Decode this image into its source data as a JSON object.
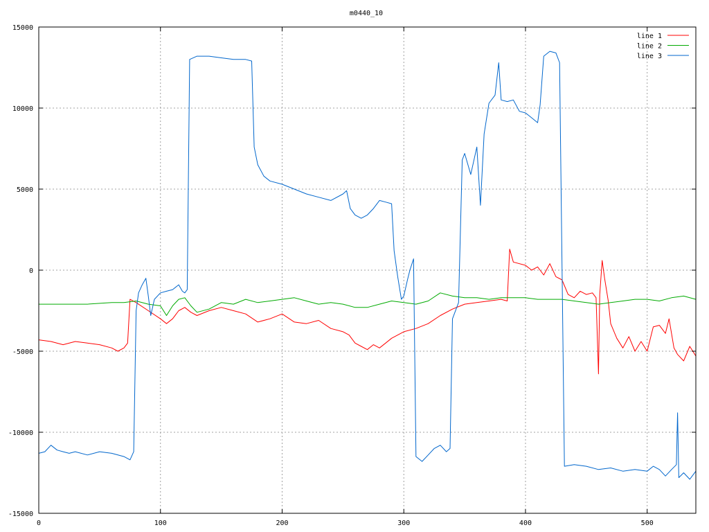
{
  "chart_data": {
    "type": "line",
    "title": "m0440_10",
    "xlabel": "",
    "ylabel": "",
    "xlim": [
      0,
      540
    ],
    "ylim": [
      -15000,
      15000
    ],
    "grid": true,
    "legend_position": "top-right",
    "x_ticks": [
      "0",
      "100",
      "200",
      "300",
      "400",
      "500"
    ],
    "y_ticks": [
      "15000",
      "10000",
      "5000",
      "0",
      "-5000",
      "-10000",
      "-15000"
    ],
    "series": [
      {
        "name": "line 1",
        "color": "#ff0000",
        "points": [
          [
            0,
            -4300
          ],
          [
            10,
            -4400
          ],
          [
            20,
            -4600
          ],
          [
            30,
            -4400
          ],
          [
            40,
            -4500
          ],
          [
            50,
            -4600
          ],
          [
            60,
            -4800
          ],
          [
            65,
            -5000
          ],
          [
            70,
            -4800
          ],
          [
            73,
            -4500
          ],
          [
            75,
            -1800
          ],
          [
            80,
            -2000
          ],
          [
            90,
            -2500
          ],
          [
            100,
            -3000
          ],
          [
            105,
            -3300
          ],
          [
            110,
            -3000
          ],
          [
            115,
            -2500
          ],
          [
            120,
            -2300
          ],
          [
            125,
            -2600
          ],
          [
            130,
            -2800
          ],
          [
            140,
            -2500
          ],
          [
            150,
            -2300
          ],
          [
            160,
            -2500
          ],
          [
            170,
            -2700
          ],
          [
            180,
            -3200
          ],
          [
            190,
            -3000
          ],
          [
            200,
            -2700
          ],
          [
            210,
            -3200
          ],
          [
            220,
            -3300
          ],
          [
            230,
            -3100
          ],
          [
            240,
            -3600
          ],
          [
            250,
            -3800
          ],
          [
            255,
            -4000
          ],
          [
            260,
            -4500
          ],
          [
            265,
            -4700
          ],
          [
            270,
            -4900
          ],
          [
            275,
            -4600
          ],
          [
            280,
            -4800
          ],
          [
            285,
            -4500
          ],
          [
            290,
            -4200
          ],
          [
            300,
            -3800
          ],
          [
            310,
            -3600
          ],
          [
            320,
            -3300
          ],
          [
            330,
            -2800
          ],
          [
            340,
            -2400
          ],
          [
            350,
            -2100
          ],
          [
            360,
            -2000
          ],
          [
            370,
            -1900
          ],
          [
            380,
            -1800
          ],
          [
            385,
            -1900
          ],
          [
            387,
            1300
          ],
          [
            390,
            500
          ],
          [
            400,
            300
          ],
          [
            405,
            0
          ],
          [
            410,
            200
          ],
          [
            415,
            -300
          ],
          [
            420,
            400
          ],
          [
            425,
            -400
          ],
          [
            430,
            -600
          ],
          [
            435,
            -1500
          ],
          [
            440,
            -1700
          ],
          [
            445,
            -1300
          ],
          [
            450,
            -1500
          ],
          [
            455,
            -1400
          ],
          [
            458,
            -1700
          ],
          [
            460,
            -6400
          ],
          [
            461,
            -1500
          ],
          [
            463,
            600
          ],
          [
            465,
            -500
          ],
          [
            468,
            -1900
          ],
          [
            470,
            -3300
          ],
          [
            475,
            -4200
          ],
          [
            480,
            -4800
          ],
          [
            485,
            -4100
          ],
          [
            490,
            -5000
          ],
          [
            495,
            -4400
          ],
          [
            500,
            -5000
          ],
          [
            505,
            -3500
          ],
          [
            510,
            -3400
          ],
          [
            515,
            -3900
          ],
          [
            518,
            -3000
          ],
          [
            522,
            -4800
          ],
          [
            525,
            -5200
          ],
          [
            530,
            -5600
          ],
          [
            535,
            -4700
          ],
          [
            540,
            -5300
          ]
        ]
      },
      {
        "name": "line 2",
        "color": "#00aa00",
        "points": [
          [
            0,
            -2100
          ],
          [
            20,
            -2100
          ],
          [
            40,
            -2100
          ],
          [
            60,
            -2000
          ],
          [
            70,
            -2000
          ],
          [
            80,
            -1900
          ],
          [
            90,
            -2100
          ],
          [
            100,
            -2200
          ],
          [
            105,
            -2800
          ],
          [
            110,
            -2200
          ],
          [
            115,
            -1800
          ],
          [
            120,
            -1700
          ],
          [
            125,
            -2200
          ],
          [
            130,
            -2600
          ],
          [
            140,
            -2400
          ],
          [
            150,
            -2000
          ],
          [
            160,
            -2100
          ],
          [
            170,
            -1800
          ],
          [
            180,
            -2000
          ],
          [
            190,
            -1900
          ],
          [
            200,
            -1800
          ],
          [
            210,
            -1700
          ],
          [
            220,
            -1900
          ],
          [
            230,
            -2100
          ],
          [
            240,
            -2000
          ],
          [
            250,
            -2100
          ],
          [
            260,
            -2300
          ],
          [
            270,
            -2300
          ],
          [
            280,
            -2100
          ],
          [
            290,
            -1900
          ],
          [
            300,
            -2000
          ],
          [
            310,
            -2100
          ],
          [
            320,
            -1900
          ],
          [
            330,
            -1400
          ],
          [
            340,
            -1600
          ],
          [
            350,
            -1700
          ],
          [
            360,
            -1700
          ],
          [
            370,
            -1800
          ],
          [
            380,
            -1700
          ],
          [
            390,
            -1700
          ],
          [
            400,
            -1700
          ],
          [
            410,
            -1800
          ],
          [
            420,
            -1800
          ],
          [
            430,
            -1800
          ],
          [
            440,
            -1900
          ],
          [
            450,
            -2000
          ],
          [
            460,
            -2100
          ],
          [
            470,
            -2000
          ],
          [
            480,
            -1900
          ],
          [
            490,
            -1800
          ],
          [
            500,
            -1800
          ],
          [
            510,
            -1900
          ],
          [
            520,
            -1700
          ],
          [
            530,
            -1600
          ],
          [
            540,
            -1800
          ]
        ]
      },
      {
        "name": "line 3",
        "color": "#0066cc",
        "points": [
          [
            0,
            -11300
          ],
          [
            5,
            -11200
          ],
          [
            10,
            -10800
          ],
          [
            15,
            -11100
          ],
          [
            20,
            -11200
          ],
          [
            25,
            -11300
          ],
          [
            30,
            -11200
          ],
          [
            40,
            -11400
          ],
          [
            50,
            -11200
          ],
          [
            60,
            -11300
          ],
          [
            70,
            -11500
          ],
          [
            75,
            -11700
          ],
          [
            78,
            -11200
          ],
          [
            80,
            -2500
          ],
          [
            82,
            -1400
          ],
          [
            85,
            -900
          ],
          [
            88,
            -500
          ],
          [
            90,
            -1600
          ],
          [
            92,
            -2800
          ],
          [
            95,
            -1800
          ],
          [
            100,
            -1400
          ],
          [
            105,
            -1300
          ],
          [
            110,
            -1200
          ],
          [
            115,
            -900
          ],
          [
            118,
            -1300
          ],
          [
            120,
            -1400
          ],
          [
            122,
            -1200
          ],
          [
            124,
            13000
          ],
          [
            130,
            13200
          ],
          [
            140,
            13200
          ],
          [
            150,
            13100
          ],
          [
            160,
            13000
          ],
          [
            170,
            13000
          ],
          [
            175,
            12900
          ],
          [
            177,
            7600
          ],
          [
            180,
            6500
          ],
          [
            185,
            5800
          ],
          [
            190,
            5500
          ],
          [
            200,
            5300
          ],
          [
            210,
            5000
          ],
          [
            220,
            4700
          ],
          [
            230,
            4500
          ],
          [
            240,
            4300
          ],
          [
            250,
            4700
          ],
          [
            253,
            4900
          ],
          [
            256,
            3800
          ],
          [
            260,
            3400
          ],
          [
            265,
            3200
          ],
          [
            270,
            3400
          ],
          [
            275,
            3800
          ],
          [
            280,
            4300
          ],
          [
            285,
            4200
          ],
          [
            290,
            4100
          ],
          [
            292,
            1200
          ],
          [
            295,
            -400
          ],
          [
            298,
            -1800
          ],
          [
            300,
            -1600
          ],
          [
            303,
            -600
          ],
          [
            305,
            0
          ],
          [
            308,
            700
          ],
          [
            310,
            -11500
          ],
          [
            315,
            -11800
          ],
          [
            320,
            -11400
          ],
          [
            325,
            -11000
          ],
          [
            330,
            -10800
          ],
          [
            335,
            -11200
          ],
          [
            338,
            -11000
          ],
          [
            340,
            -3000
          ],
          [
            345,
            -2000
          ],
          [
            348,
            6800
          ],
          [
            350,
            7200
          ],
          [
            355,
            5900
          ],
          [
            360,
            7600
          ],
          [
            363,
            4000
          ],
          [
            366,
            8400
          ],
          [
            370,
            10300
          ],
          [
            375,
            10800
          ],
          [
            378,
            12800
          ],
          [
            380,
            10500
          ],
          [
            385,
            10400
          ],
          [
            390,
            10500
          ],
          [
            395,
            9800
          ],
          [
            400,
            9700
          ],
          [
            405,
            9400
          ],
          [
            410,
            9100
          ],
          [
            412,
            10200
          ],
          [
            415,
            13200
          ],
          [
            420,
            13500
          ],
          [
            425,
            13400
          ],
          [
            428,
            12800
          ],
          [
            432,
            -12100
          ],
          [
            440,
            -12000
          ],
          [
            450,
            -12100
          ],
          [
            460,
            -12300
          ],
          [
            470,
            -12200
          ],
          [
            480,
            -12400
          ],
          [
            490,
            -12300
          ],
          [
            500,
            -12400
          ],
          [
            505,
            -12100
          ],
          [
            510,
            -12300
          ],
          [
            515,
            -12700
          ],
          [
            520,
            -12300
          ],
          [
            524,
            -12000
          ],
          [
            525,
            -8800
          ],
          [
            526,
            -12800
          ],
          [
            530,
            -12500
          ],
          [
            535,
            -12900
          ],
          [
            540,
            -12400
          ]
        ]
      }
    ]
  }
}
